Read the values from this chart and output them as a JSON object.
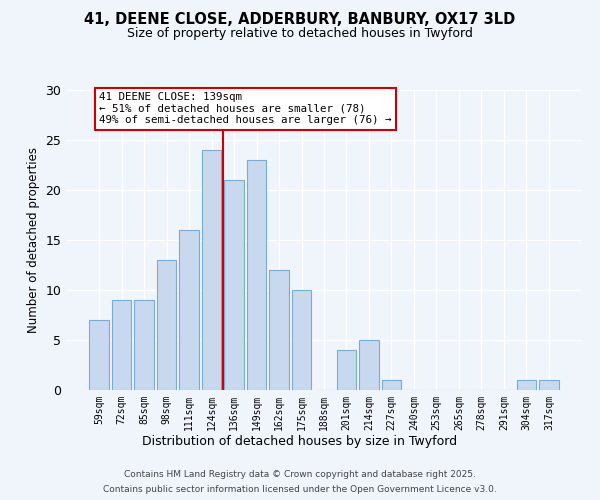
{
  "title1": "41, DEENE CLOSE, ADDERBURY, BANBURY, OX17 3LD",
  "title2": "Size of property relative to detached houses in Twyford",
  "xlabel": "Distribution of detached houses by size in Twyford",
  "ylabel": "Number of detached properties",
  "bar_labels": [
    "59sqm",
    "72sqm",
    "85sqm",
    "98sqm",
    "111sqm",
    "124sqm",
    "136sqm",
    "149sqm",
    "162sqm",
    "175sqm",
    "188sqm",
    "201sqm",
    "214sqm",
    "227sqm",
    "240sqm",
    "253sqm",
    "265sqm",
    "278sqm",
    "291sqm",
    "304sqm",
    "317sqm"
  ],
  "bar_values": [
    7,
    9,
    9,
    13,
    16,
    24,
    21,
    23,
    12,
    10,
    0,
    4,
    5,
    1,
    0,
    0,
    0,
    0,
    0,
    1,
    1
  ],
  "bar_color": "#c8d9ef",
  "bar_edge_color": "#7aacd3",
  "vline_color": "#cc0000",
  "annotation_title": "41 DEENE CLOSE: 139sqm",
  "annotation_line1": "← 51% of detached houses are smaller (78)",
  "annotation_line2": "49% of semi-detached houses are larger (76) →",
  "annotation_box_edge": "#cc0000",
  "ylim": [
    0,
    30
  ],
  "yticks": [
    0,
    5,
    10,
    15,
    20,
    25,
    30
  ],
  "footer1": "Contains HM Land Registry data © Crown copyright and database right 2025.",
  "footer2": "Contains public sector information licensed under the Open Government Licence v3.0.",
  "bg_color": "#f0f4fb",
  "grid_color": "#ffffff"
}
